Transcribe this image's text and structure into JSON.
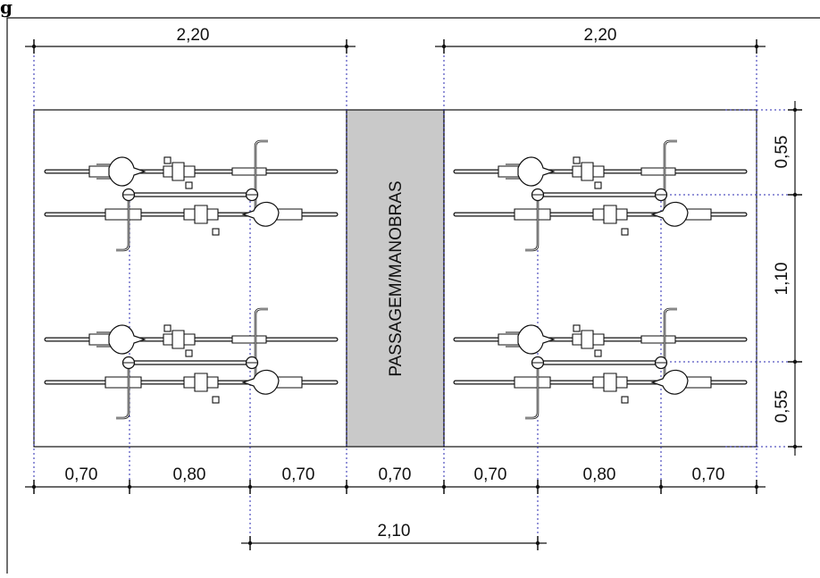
{
  "figure_label": "g",
  "passage_label": "PASSAGEM/MANOBRAS",
  "colors": {
    "passage_fill": "#c9c9c9",
    "guide_lines": "#2a2ab0",
    "lines": "#111111"
  },
  "dimensions": {
    "top_left": "2,20",
    "top_right": "2,20",
    "right_top": "0,55",
    "right_middle": "1,10",
    "right_bottom": "0,55",
    "bottom_row": [
      "0,70",
      "0,80",
      "0,70",
      "0,70",
      "0,70",
      "0,80",
      "0,70"
    ],
    "bottom_total": "2,10"
  }
}
